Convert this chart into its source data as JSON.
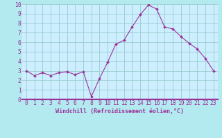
{
  "x": [
    0,
    1,
    2,
    3,
    4,
    5,
    6,
    7,
    8,
    9,
    10,
    11,
    12,
    13,
    14,
    15,
    16,
    17,
    18,
    19,
    20,
    21,
    22,
    23
  ],
  "y": [
    3.0,
    2.5,
    2.8,
    2.5,
    2.8,
    2.9,
    2.6,
    2.9,
    0.3,
    2.2,
    3.9,
    5.8,
    6.2,
    7.6,
    8.9,
    9.9,
    9.5,
    7.6,
    7.4,
    6.6,
    5.9,
    5.3,
    4.3,
    3.0
  ],
  "line_color": "#993399",
  "marker_color": "#993399",
  "plot_bg_color": "#cceeff",
  "outer_bg_color": "#b3eaf0",
  "grid_color": "#99cccc",
  "border_color": "#993399",
  "xlabel": "Windchill (Refroidissement éolien,°C)",
  "xlim": [
    -0.5,
    23.5
  ],
  "ylim": [
    0,
    10
  ],
  "xticks": [
    0,
    1,
    2,
    3,
    4,
    5,
    6,
    7,
    8,
    9,
    10,
    11,
    12,
    13,
    14,
    15,
    16,
    17,
    18,
    19,
    20,
    21,
    22,
    23
  ],
  "yticks": [
    0,
    1,
    2,
    3,
    4,
    5,
    6,
    7,
    8,
    9,
    10
  ],
  "xlabel_color": "#993399",
  "tick_color": "#993399",
  "label_fontsize": 6.0,
  "tick_fontsize": 5.8
}
